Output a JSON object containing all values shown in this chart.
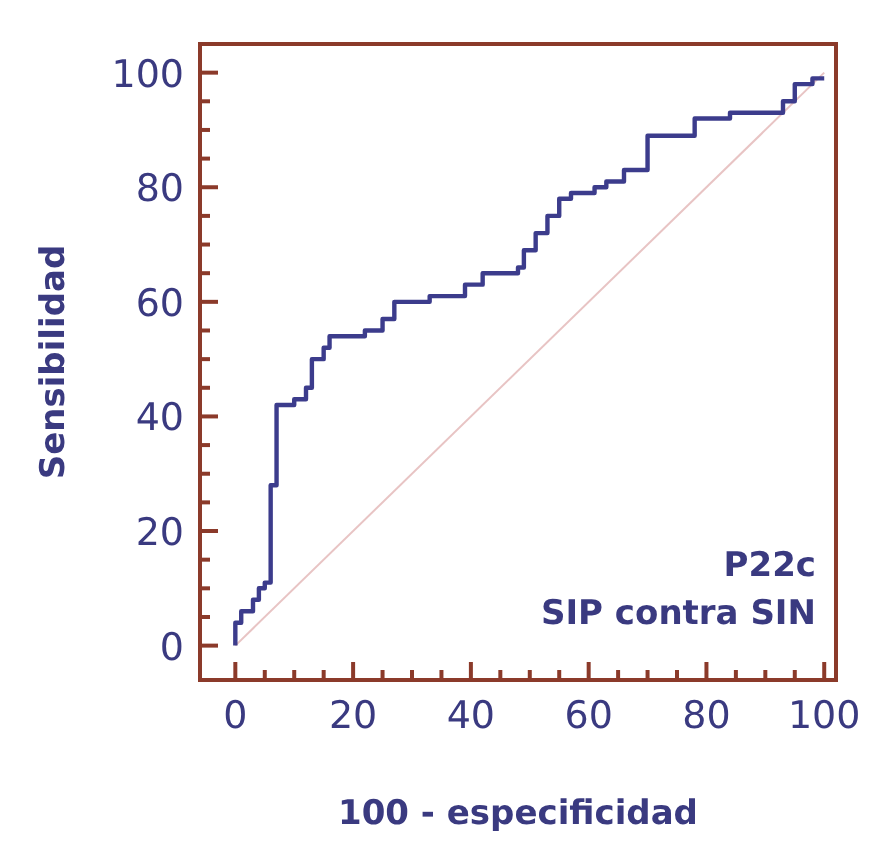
{
  "chart_data": {
    "type": "step",
    "xlabel": "100 - especificidad",
    "ylabel": "Sensibilidad",
    "annotations": [
      "P22c",
      "SIP contra SIN"
    ],
    "xlim": [
      -6,
      102
    ],
    "ylim": [
      -6,
      105
    ],
    "xticks": [
      0,
      {
        "value": 5,
        "label": null
      },
      {
        "value": 10,
        "label": null
      },
      {
        "value": 15,
        "label": null
      },
      20,
      {
        "value": 25,
        "label": null
      },
      {
        "value": 30,
        "label": null
      },
      {
        "value": 35,
        "label": null
      },
      40,
      {
        "value": 45,
        "label": null
      },
      {
        "value": 50,
        "label": null
      },
      {
        "value": 55,
        "label": null
      },
      60,
      {
        "value": 65,
        "label": null
      },
      {
        "value": 70,
        "label": null
      },
      {
        "value": 75,
        "label": null
      },
      80,
      {
        "value": 85,
        "label": null
      },
      {
        "value": 90,
        "label": null
      },
      {
        "value": 95,
        "label": null
      },
      100
    ],
    "yticks": [
      0,
      {
        "value": 5,
        "label": null
      },
      {
        "value": 10,
        "label": null
      },
      {
        "value": 15,
        "label": null
      },
      20,
      {
        "value": 25,
        "label": null
      },
      {
        "value": 30,
        "label": null
      },
      {
        "value": 35,
        "label": null
      },
      40,
      {
        "value": 45,
        "label": null
      },
      {
        "value": 50,
        "label": null
      },
      {
        "value": 55,
        "label": null
      },
      60,
      {
        "value": 65,
        "label": null
      },
      {
        "value": 70,
        "label": null
      },
      {
        "value": 75,
        "label": null
      },
      80,
      {
        "value": 85,
        "label": null
      },
      {
        "value": 90,
        "label": null
      },
      {
        "value": 95,
        "label": null
      },
      100
    ],
    "grid": false,
    "marker": "none",
    "line_style": "solid",
    "series": [
      {
        "type": "line",
        "color": "#e8c4c4",
        "x": [
          0,
          100
        ],
        "values": [
          0,
          100
        ]
      },
      {
        "color": "#3c3c8c",
        "x": [
          0,
          0,
          1,
          1,
          3,
          3,
          4,
          4,
          5,
          5,
          6,
          6,
          7,
          7,
          10,
          10,
          12,
          12,
          13,
          13,
          15,
          15,
          16,
          16,
          22,
          22,
          25,
          25,
          27,
          27,
          33,
          33,
          39,
          39,
          42,
          42,
          48,
          48,
          49,
          49,
          51,
          51,
          53,
          53,
          55,
          55,
          57,
          57,
          61,
          61,
          63,
          63,
          66,
          66,
          70,
          70,
          78,
          78,
          84,
          84,
          93,
          93,
          95,
          95,
          98,
          98,
          100
        ],
        "values": [
          0,
          4,
          4,
          6,
          6,
          8,
          8,
          10,
          10,
          11,
          11,
          28,
          28,
          42,
          42,
          43,
          43,
          45,
          45,
          50,
          50,
          52,
          52,
          54,
          54,
          55,
          55,
          57,
          57,
          60,
          60,
          61,
          61,
          63,
          63,
          65,
          65,
          66,
          66,
          69,
          69,
          72,
          72,
          75,
          75,
          78,
          78,
          79,
          79,
          80,
          80,
          81,
          81,
          83,
          83,
          89,
          89,
          92,
          92,
          93,
          93,
          95,
          95,
          98,
          98,
          99,
          99
        ]
      }
    ]
  }
}
